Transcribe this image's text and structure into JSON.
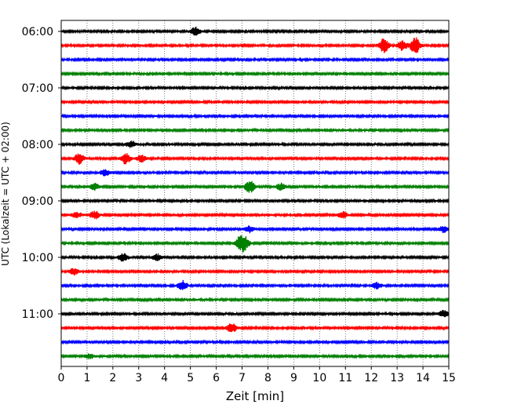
{
  "chart_data": {
    "type": "line",
    "title": "",
    "xlabel": "Zeit  [min]",
    "ylabel": "UTC (Lokalzeit = UTC + 02:00)",
    "xlim": [
      0,
      15
    ],
    "x_ticks": [
      "0",
      "1",
      "2",
      "3",
      "4",
      "5",
      "6",
      "7",
      "8",
      "9",
      "10",
      "11",
      "12",
      "13",
      "14",
      "15"
    ],
    "y_ticks": [
      "06:00",
      "07:00",
      "08:00",
      "09:00",
      "10:00",
      "11:00"
    ],
    "grid": "vertical dotted",
    "row_interval_min": 15,
    "rows": [
      {
        "start": "06:00",
        "color": "#000000",
        "events": [
          {
            "t": 5.2,
            "a": 5
          }
        ]
      },
      {
        "start": "06:15",
        "color": "#ff0000",
        "events": [
          {
            "t": 12.5,
            "a": 9
          },
          {
            "t": 13.2,
            "a": 6
          },
          {
            "t": 13.7,
            "a": 11
          }
        ]
      },
      {
        "start": "06:30",
        "color": "#0000ff",
        "events": []
      },
      {
        "start": "06:45",
        "color": "#008000",
        "events": []
      },
      {
        "start": "07:00",
        "color": "#000000",
        "events": []
      },
      {
        "start": "07:15",
        "color": "#ff0000",
        "events": []
      },
      {
        "start": "07:30",
        "color": "#0000ff",
        "events": []
      },
      {
        "start": "07:45",
        "color": "#008000",
        "events": []
      },
      {
        "start": "08:00",
        "color": "#000000",
        "events": [
          {
            "t": 2.7,
            "a": 4
          }
        ]
      },
      {
        "start": "08:15",
        "color": "#ff0000",
        "events": [
          {
            "t": 0.7,
            "a": 7
          },
          {
            "t": 2.5,
            "a": 7
          },
          {
            "t": 3.1,
            "a": 4
          }
        ]
      },
      {
        "start": "08:30",
        "color": "#0000ff",
        "events": [
          {
            "t": 1.7,
            "a": 4
          }
        ]
      },
      {
        "start": "08:45",
        "color": "#008000",
        "events": [
          {
            "t": 1.3,
            "a": 4
          },
          {
            "t": 7.3,
            "a": 8
          },
          {
            "t": 8.5,
            "a": 4
          }
        ]
      },
      {
        "start": "09:00",
        "color": "#000000",
        "events": []
      },
      {
        "start": "09:15",
        "color": "#ff0000",
        "events": [
          {
            "t": 0.6,
            "a": 4
          },
          {
            "t": 1.3,
            "a": 5
          },
          {
            "t": 10.9,
            "a": 4
          }
        ]
      },
      {
        "start": "09:30",
        "color": "#0000ff",
        "events": [
          {
            "t": 7.3,
            "a": 4
          },
          {
            "t": 14.8,
            "a": 4
          }
        ]
      },
      {
        "start": "09:45",
        "color": "#008000",
        "events": [
          {
            "t": 6.9,
            "a": 7
          },
          {
            "t": 7.1,
            "a": 8
          }
        ]
      },
      {
        "start": "10:00",
        "color": "#000000",
        "events": [
          {
            "t": 2.4,
            "a": 5
          },
          {
            "t": 3.7,
            "a": 4
          }
        ]
      },
      {
        "start": "10:15",
        "color": "#ff0000",
        "events": [
          {
            "t": 0.5,
            "a": 4
          }
        ]
      },
      {
        "start": "10:30",
        "color": "#0000ff",
        "events": [
          {
            "t": 4.7,
            "a": 6
          },
          {
            "t": 12.2,
            "a": 4
          }
        ]
      },
      {
        "start": "10:45",
        "color": "#008000",
        "events": []
      },
      {
        "start": "11:00",
        "color": "#000000",
        "events": [
          {
            "t": 14.8,
            "a": 4
          }
        ]
      },
      {
        "start": "11:15",
        "color": "#ff0000",
        "events": [
          {
            "t": 6.6,
            "a": 6
          }
        ]
      },
      {
        "start": "11:30",
        "color": "#0000ff",
        "events": []
      },
      {
        "start": "11:45",
        "color": "#008000",
        "events": [
          {
            "t": 1.1,
            "a": 3
          }
        ]
      }
    ]
  }
}
